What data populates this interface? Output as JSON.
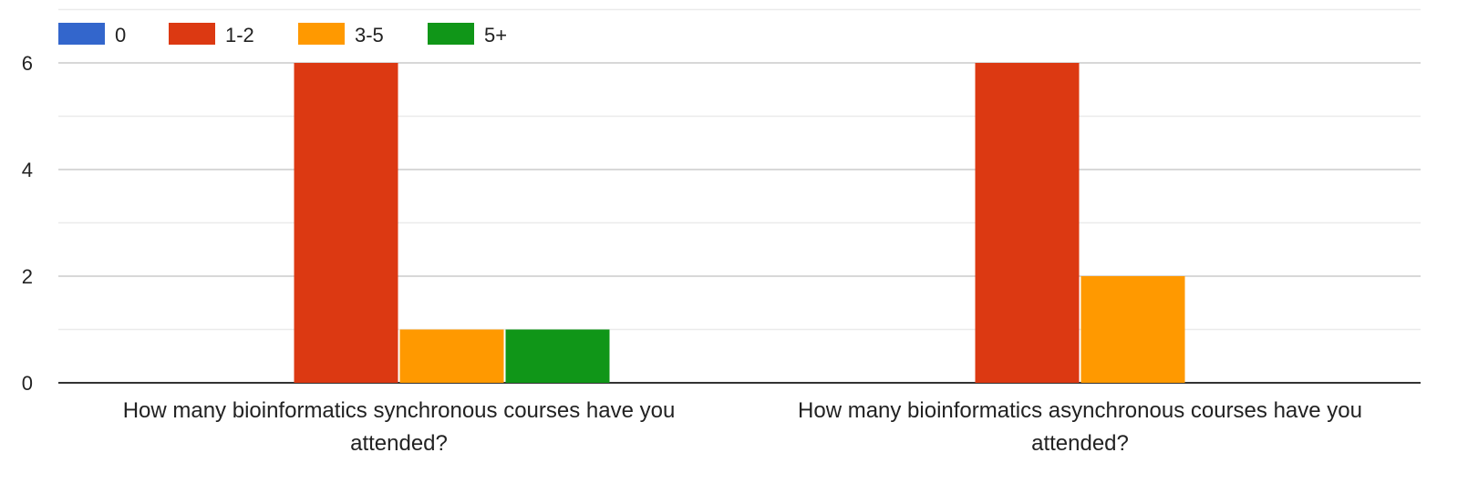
{
  "chart_data": {
    "type": "bar",
    "categories": [
      [
        "How many bioinformatics synchronous courses have you",
        "attended?"
      ],
      [
        "How many bioinformatics asynchronous courses have you",
        "attended?"
      ]
    ],
    "series": [
      {
        "name": "0",
        "color": "#3366cc",
        "values": [
          0,
          0
        ]
      },
      {
        "name": "1-2",
        "color": "#dc3912",
        "values": [
          6,
          6
        ]
      },
      {
        "name": "3-5",
        "color": "#ff9900",
        "values": [
          1,
          2
        ]
      },
      {
        "name": "5+",
        "color": "#109618",
        "values": [
          1,
          0
        ]
      }
    ],
    "ylim": [
      0,
      7
    ],
    "yticks": [
      0,
      2,
      4,
      6
    ],
    "minor_gridlines": [
      1,
      3,
      5,
      7
    ],
    "legend_position": "top-left",
    "grid": true
  }
}
